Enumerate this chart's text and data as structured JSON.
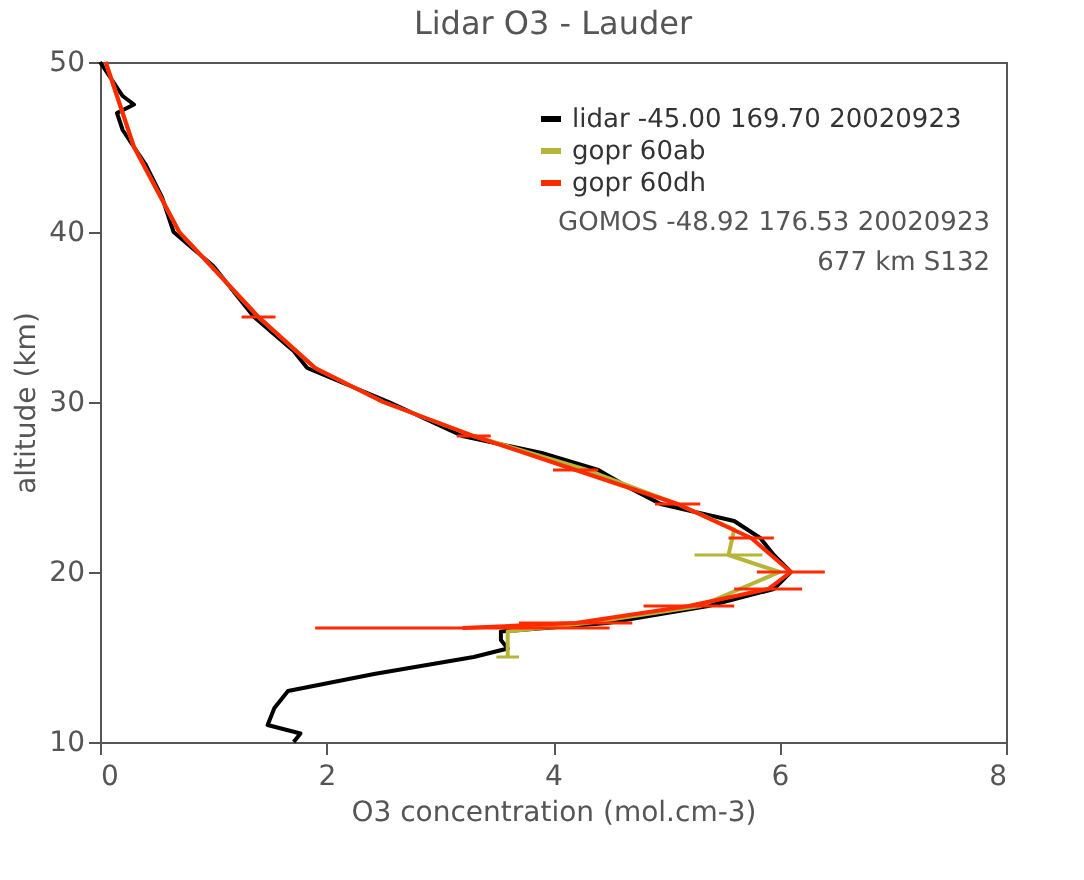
{
  "chart_data": {
    "type": "line",
    "title": "Lidar O3 - Lauder",
    "xlabel": "O3 concentration (mol.cm-3)",
    "ylabel": "altitude (km)",
    "xlim": [
      0,
      8
    ],
    "xticks": [
      0,
      2,
      4,
      6,
      8
    ],
    "ylim": [
      10,
      50
    ],
    "yticks": [
      10,
      20,
      30,
      40,
      50
    ],
    "legend": "top right",
    "grid": false,
    "annotations": [
      "GOMOS -48.92 176.53 20020923",
      "677 km  S132"
    ],
    "series": [
      {
        "name": "lidar -45.00 169.70 20020923",
        "color": "#000000",
        "x": [
          0.0,
          0.2,
          0.3,
          0.15,
          0.2,
          0.3,
          0.4,
          0.55,
          0.65,
          1.0,
          1.36,
          1.71,
          1.83,
          2.55,
          3.2,
          3.9,
          4.4,
          4.66,
          4.95,
          5.6,
          5.83,
          5.95,
          6.1,
          5.95,
          5.37,
          4.48,
          3.54,
          3.54,
          3.6,
          3.3,
          2.42,
          1.66,
          1.54,
          1.48,
          1.77,
          1.71
        ],
        "values": [
          50,
          48,
          47.5,
          47,
          46,
          45,
          44,
          42,
          40,
          38,
          35,
          33,
          32,
          30,
          28,
          27,
          26,
          25,
          24,
          23,
          22,
          21,
          20,
          19,
          18,
          17,
          16.5,
          16,
          15.5,
          15,
          14,
          13,
          12,
          11,
          10.5,
          10
        ]
      },
      {
        "name": "gopr 60ab",
        "color": "#b5b53a",
        "x": [
          0.05,
          0.3,
          0.7,
          1.4,
          1.9,
          2.5,
          3.3,
          4.3,
          5.1,
          5.6,
          5.55,
          6.0,
          5.3,
          4.3,
          3.6,
          3.6
        ],
        "values": [
          50,
          45,
          40,
          35,
          32,
          30,
          28,
          26,
          24,
          22.5,
          21,
          20,
          18,
          17,
          16.5,
          15
        ],
        "xerrors": [
          null,
          null,
          null,
          null,
          null,
          null,
          null,
          null,
          null,
          null,
          0.3,
          null,
          null,
          null,
          null,
          0.1
        ]
      },
      {
        "name": "gopr 60dh",
        "color": "#ff2a00",
        "x": [
          0.05,
          0.3,
          0.7,
          1.4,
          1.9,
          2.5,
          3.3,
          4.2,
          5.1,
          5.75,
          6.1,
          5.9,
          5.2,
          4.2,
          3.2
        ],
        "values": [
          50,
          45,
          40,
          35,
          32,
          30,
          28,
          26,
          24,
          22,
          20,
          19,
          18,
          17,
          16.7
        ],
        "xerrors": [
          null,
          null,
          null,
          0.15,
          null,
          null,
          0.15,
          0.2,
          0.2,
          0.2,
          0.3,
          0.3,
          0.4,
          0.5,
          1.3
        ]
      }
    ]
  }
}
